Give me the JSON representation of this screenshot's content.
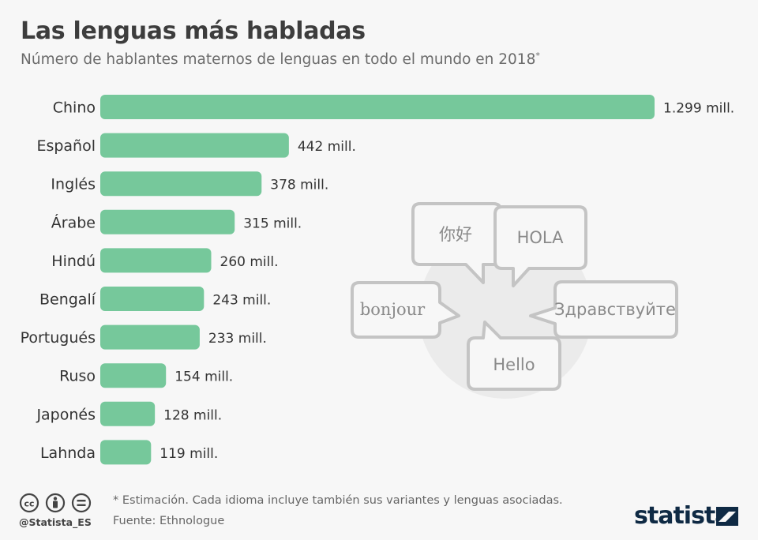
{
  "title": "Las lenguas más habladas",
  "subtitle": "Número de hablantes maternos de lenguas en todo el mundo en 2018",
  "subtitle_mark": "*",
  "chart_data": {
    "type": "bar",
    "orientation": "horizontal",
    "title": "Las lenguas más habladas",
    "subtitle": "Número de hablantes maternos de lenguas en todo el mundo en 2018*",
    "categories": [
      "Chino",
      "Español",
      "Inglés",
      "Árabe",
      "Hindú",
      "Bengalí",
      "Portugués",
      "Ruso",
      "Japonés",
      "Lahnda"
    ],
    "values": [
      1299,
      442,
      378,
      315,
      260,
      243,
      233,
      154,
      128,
      119
    ],
    "value_labels": [
      "1.299 mill.",
      "442 mill.",
      "378 mill.",
      "315 mill.",
      "260 mill.",
      "243 mill.",
      "233 mill.",
      "154 mill.",
      "128 mill.",
      "119 mill."
    ],
    "unit": "mill.",
    "xlim": [
      0,
      1299
    ],
    "grid": false,
    "bar_color": "#76c89b"
  },
  "illustration": {
    "bubbles": [
      "你好",
      "HOLA",
      "bonjour",
      "Здравствуйте",
      "Hello"
    ]
  },
  "footer": {
    "note": "* Estimación. Cada idioma incluye también sus variantes y lenguas asociadas.",
    "source": "Fuente: Ethnologue",
    "handle": "@Statista_ES",
    "brand": "statista"
  },
  "colors": {
    "bar": "#76c89b",
    "background": "#f7f7f7",
    "bubble_stroke": "#c4c4c4",
    "bubble_bg_circle": "#ebebeb",
    "brand": "#0f2a44"
  }
}
